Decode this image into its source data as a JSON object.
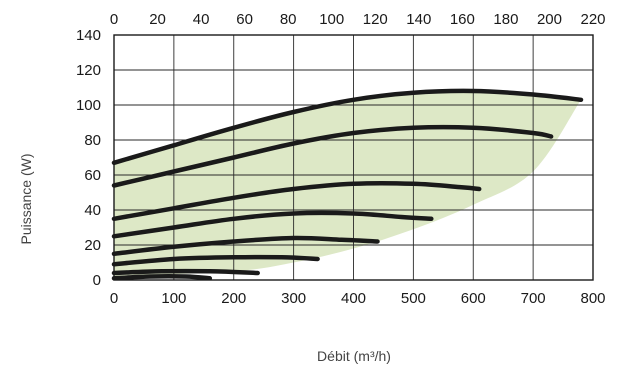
{
  "chart_data": {
    "type": "line",
    "title": "",
    "xlabel": "Débit (m³/h)",
    "ylabel": "Puissance (W)",
    "x_secondary_label": "",
    "xlim": [
      0,
      800
    ],
    "x_secondary_lim": [
      0,
      220
    ],
    "ylim": [
      0,
      140
    ],
    "x_ticks": [
      "0",
      "100",
      "200",
      "300",
      "400",
      "500",
      "600",
      "700",
      "800"
    ],
    "x_secondary_ticks": [
      "0",
      "20",
      "40",
      "60",
      "80",
      "100",
      "120",
      "140",
      "160",
      "180",
      "200",
      "220"
    ],
    "y_ticks": [
      "0",
      "20",
      "40",
      "60",
      "80",
      "100",
      "120",
      "140"
    ],
    "grid": true,
    "legend": "none",
    "colors": {
      "curve": "#1a1a1a",
      "area": "#dde8c6",
      "grid": "#2a2a2a"
    },
    "operating_area": {
      "upper": [
        [
          0,
          67
        ],
        [
          100,
          77
        ],
        [
          200,
          87
        ],
        [
          300,
          96
        ],
        [
          400,
          103
        ],
        [
          500,
          107
        ],
        [
          600,
          108
        ],
        [
          700,
          106
        ],
        [
          780,
          103
        ]
      ],
      "lower": [
        [
          0,
          2
        ],
        [
          200,
          5
        ],
        [
          300,
          10
        ],
        [
          400,
          18
        ],
        [
          500,
          29
        ],
        [
          600,
          43
        ],
        [
          700,
          62
        ],
        [
          780,
          103
        ]
      ]
    },
    "series": [
      {
        "values": [
          [
            0,
            67
          ],
          [
            100,
            77
          ],
          [
            200,
            87
          ],
          [
            300,
            96
          ],
          [
            400,
            103
          ],
          [
            500,
            107
          ],
          [
            600,
            108
          ],
          [
            700,
            106
          ],
          [
            780,
            103
          ]
        ]
      },
      {
        "values": [
          [
            0,
            54
          ],
          [
            100,
            62
          ],
          [
            200,
            70
          ],
          [
            300,
            78
          ],
          [
            400,
            84
          ],
          [
            500,
            87
          ],
          [
            600,
            87
          ],
          [
            700,
            84
          ],
          [
            730,
            82
          ]
        ]
      },
      {
        "values": [
          [
            0,
            35
          ],
          [
            100,
            41
          ],
          [
            200,
            47
          ],
          [
            300,
            52
          ],
          [
            400,
            55
          ],
          [
            500,
            55
          ],
          [
            580,
            53
          ],
          [
            610,
            52
          ]
        ]
      },
      {
        "values": [
          [
            0,
            25
          ],
          [
            100,
            30
          ],
          [
            200,
            35
          ],
          [
            300,
            38
          ],
          [
            400,
            38
          ],
          [
            480,
            36
          ],
          [
            530,
            35
          ]
        ]
      },
      {
        "values": [
          [
            0,
            15
          ],
          [
            100,
            19
          ],
          [
            200,
            22
          ],
          [
            300,
            24
          ],
          [
            380,
            23
          ],
          [
            440,
            22
          ]
        ]
      },
      {
        "values": [
          [
            0,
            9
          ],
          [
            100,
            12
          ],
          [
            200,
            13
          ],
          [
            280,
            13
          ],
          [
            340,
            12
          ]
        ]
      },
      {
        "values": [
          [
            0,
            4
          ],
          [
            80,
            5
          ],
          [
            160,
            5
          ],
          [
            240,
            4
          ]
        ]
      },
      {
        "values": [
          [
            0,
            1
          ],
          [
            60,
            2
          ],
          [
            120,
            2
          ],
          [
            160,
            1
          ]
        ]
      }
    ]
  }
}
